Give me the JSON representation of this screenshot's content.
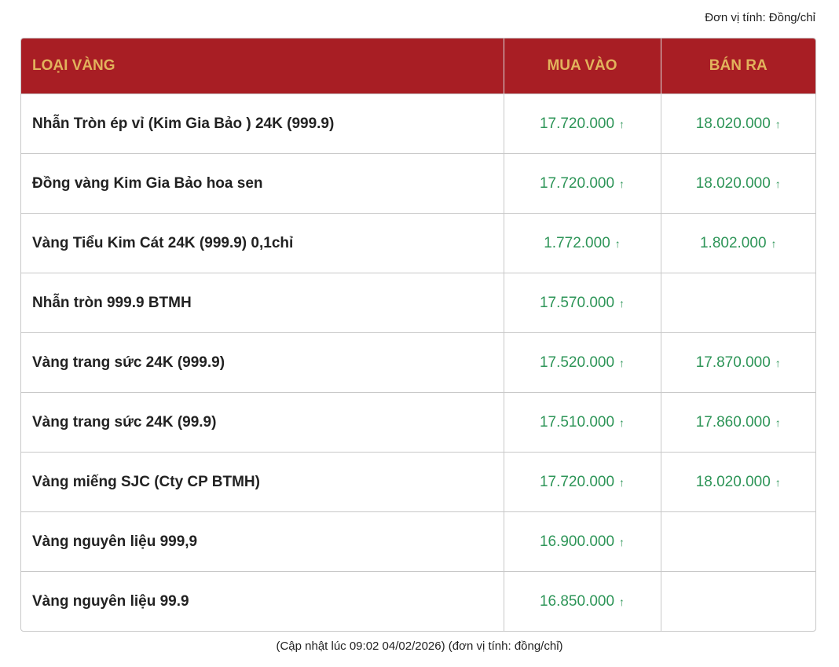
{
  "unit_label": "Đơn vị tính: Đồng/chỉ",
  "colors": {
    "header_bg": "#a81e24",
    "header_text": "#e2b35c",
    "price_up": "#2e9558"
  },
  "table": {
    "headers": [
      "LOẠI VÀNG",
      "MUA VÀO",
      "BÁN RA"
    ],
    "rows": [
      {
        "name": "Nhẫn Tròn ép vỉ (Kim Gia Bảo ) 24K (999.9)",
        "buy": "17.720.000",
        "buy_trend": "↑",
        "sell": "18.020.000",
        "sell_trend": "↑"
      },
      {
        "name": "Đồng vàng Kim Gia Bảo hoa sen",
        "buy": "17.720.000",
        "buy_trend": "↑",
        "sell": "18.020.000",
        "sell_trend": "↑"
      },
      {
        "name": "Vàng Tiểu Kim Cát 24K (999.9) 0,1chỉ",
        "buy": "1.772.000",
        "buy_trend": "↑",
        "sell": "1.802.000",
        "sell_trend": "↑"
      },
      {
        "name": "Nhẫn tròn 999.9 BTMH",
        "buy": "17.570.000",
        "buy_trend": "↑",
        "sell": "",
        "sell_trend": ""
      },
      {
        "name": "Vàng trang sức 24K (999.9)",
        "buy": "17.520.000",
        "buy_trend": "↑",
        "sell": "17.870.000",
        "sell_trend": "↑"
      },
      {
        "name": "Vàng trang sức 24K (99.9)",
        "buy": "17.510.000",
        "buy_trend": "↑",
        "sell": "17.860.000",
        "sell_trend": "↑"
      },
      {
        "name": "Vàng miếng SJC (Cty CP BTMH)",
        "buy": "17.720.000",
        "buy_trend": "↑",
        "sell": "18.020.000",
        "sell_trend": "↑"
      },
      {
        "name": "Vàng nguyên liệu 999,9",
        "buy": "16.900.000",
        "buy_trend": "↑",
        "sell": "",
        "sell_trend": ""
      },
      {
        "name": "Vàng nguyên liệu 99.9",
        "buy": "16.850.000",
        "buy_trend": "↑",
        "sell": "",
        "sell_trend": ""
      }
    ]
  },
  "footer_note": "(Cập nhật lúc 09:02 04/02/2026) (đơn vị tính: đồng/chỉ)"
}
